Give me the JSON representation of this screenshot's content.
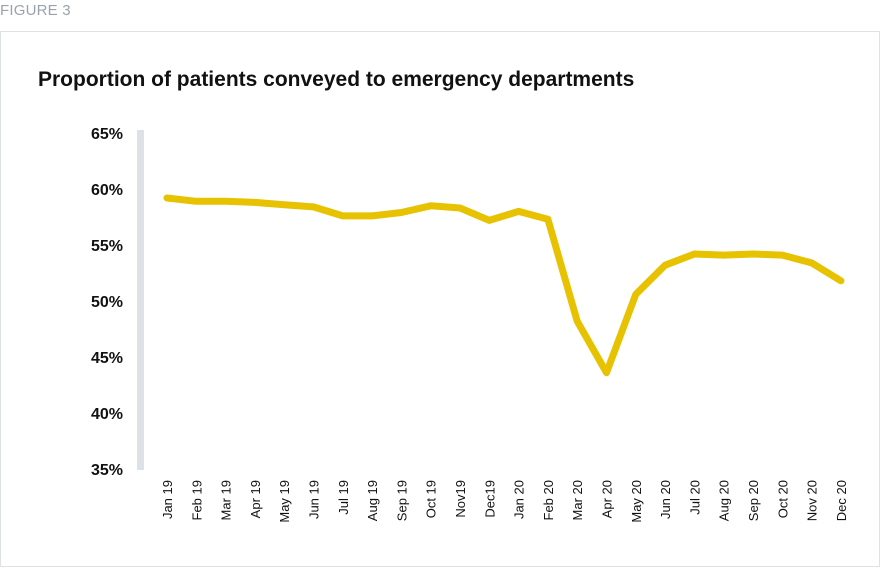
{
  "figure_label": "FIGURE 3",
  "chart_data": {
    "type": "line",
    "title": "Proportion of patients conveyed to emergency departments",
    "xlabel": "",
    "ylabel": "",
    "ylim": [
      35,
      65
    ],
    "yticks": [
      "35%",
      "40%",
      "45%",
      "50%",
      "55%",
      "60%",
      "65%"
    ],
    "categories": [
      "Jan 19",
      "Feb 19",
      "Mar 19",
      "Apr 19",
      "May 19",
      "Jun 19",
      "Jul 19",
      "Aug 19",
      "Sep 19",
      "Oct 19",
      "Nov19",
      "Dec19",
      "Jan 20",
      "Feb 20",
      "Mar 20",
      "Apr 20",
      "May 20",
      "Jun 20",
      "Jul 20",
      "Aug 20",
      "Sep 20",
      "Oct 20",
      "Nov 20",
      "Dec 20"
    ],
    "series": [
      {
        "values": [
          59.2,
          58.9,
          58.9,
          58.8,
          58.6,
          58.4,
          57.6,
          57.6,
          57.9,
          58.5,
          58.3,
          57.2,
          58.0,
          57.3,
          48.2,
          43.6,
          50.6,
          53.2,
          54.2,
          54.1,
          54.2,
          54.1,
          53.4,
          51.8
        ]
      }
    ],
    "line_color": "#e6c200",
    "axis_color": "#dde2e6",
    "grid": false,
    "legend": "none"
  }
}
